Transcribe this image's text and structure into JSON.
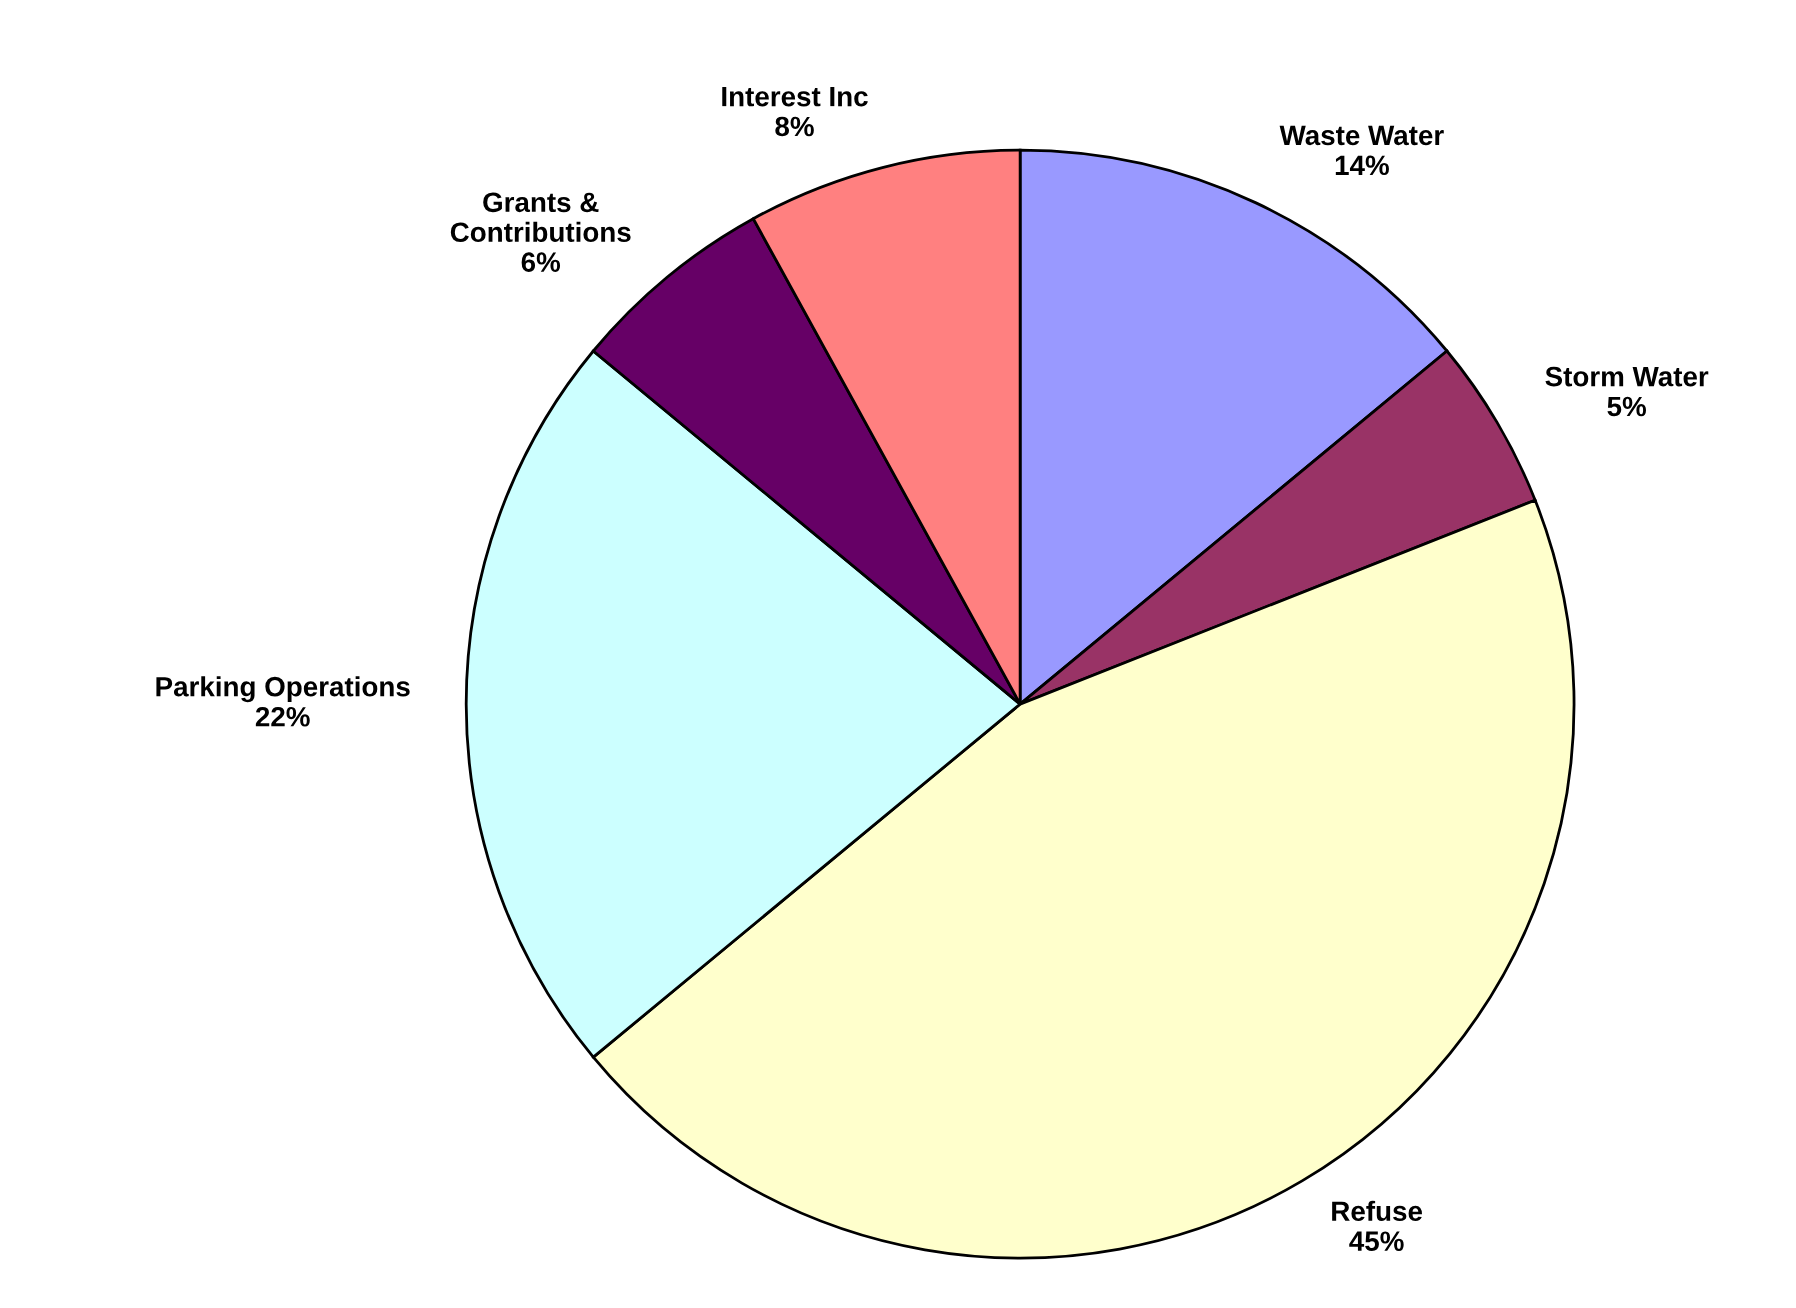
{
  "chart_data": {
    "type": "pie",
    "categories": [
      "Waste Water",
      "Storm Water",
      "Refuse",
      "Parking Operations",
      "Grants &\nContributions",
      "Interest Inc"
    ],
    "values": [
      14,
      5,
      45,
      22,
      6,
      8
    ],
    "value_labels": [
      "14%",
      "5%",
      "45%",
      "22%",
      "6%",
      "8%"
    ],
    "colors": [
      "#9999ff",
      "#993366",
      "#ffffcc",
      "#ccffff",
      "#660066",
      "#ff8080"
    ],
    "legend": false
  }
}
